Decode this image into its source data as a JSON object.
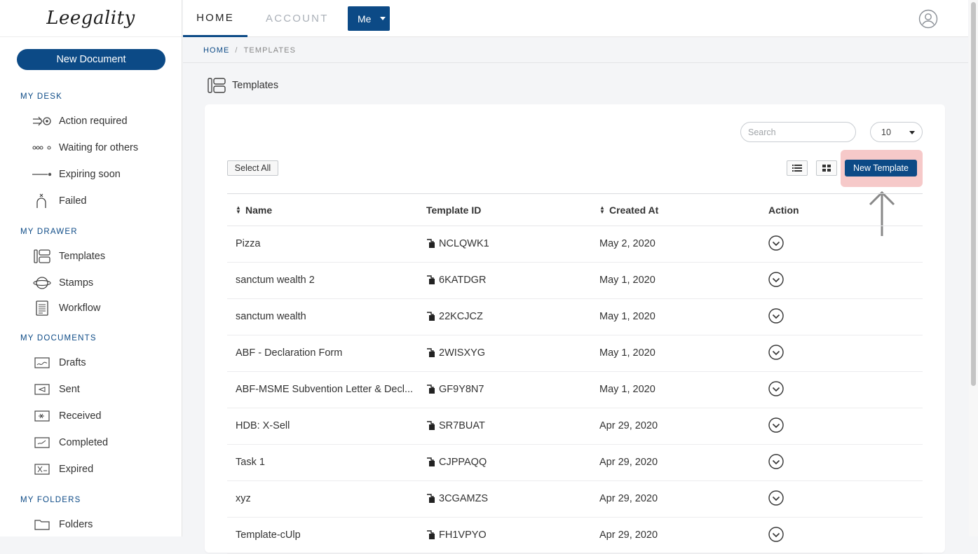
{
  "sidebar": {
    "logo": "Leegality",
    "new_document": "New Document",
    "sections": [
      {
        "title": "MY DESK",
        "items": [
          {
            "label": "Action required",
            "icon": "arrow-target-icon"
          },
          {
            "label": "Waiting for others",
            "icon": "dots-icon"
          },
          {
            "label": "Expiring soon",
            "icon": "fuse-icon"
          },
          {
            "label": "Failed",
            "icon": "broken-icon"
          }
        ]
      },
      {
        "title": "MY DRAWER",
        "items": [
          {
            "label": "Templates",
            "icon": "templates-icon"
          },
          {
            "label": "Stamps",
            "icon": "stamp-icon"
          },
          {
            "label": "Workflow",
            "icon": "workflow-icon"
          }
        ]
      },
      {
        "title": "MY DOCUMENTS",
        "items": [
          {
            "label": "Drafts",
            "icon": "drafts-icon"
          },
          {
            "label": "Sent",
            "icon": "sent-icon"
          },
          {
            "label": "Received",
            "icon": "received-icon"
          },
          {
            "label": "Completed",
            "icon": "completed-icon"
          },
          {
            "label": "Expired",
            "icon": "expired-icon"
          }
        ]
      },
      {
        "title": "MY FOLDERS",
        "items": [
          {
            "label": "Folders",
            "icon": "folder-icon"
          }
        ]
      }
    ]
  },
  "header": {
    "tabs": {
      "home": "HOME",
      "account": "ACCOUNT"
    },
    "me_label": "Me"
  },
  "breadcrumb": {
    "home": "HOME",
    "separator": "/",
    "current": "TEMPLATES"
  },
  "page": {
    "title": "Templates"
  },
  "toolbar": {
    "search_placeholder": "Search",
    "per_page": "10",
    "select_all": "Select All",
    "new_template": "New Template"
  },
  "table": {
    "headers": {
      "name": "Name",
      "id": "Template ID",
      "created": "Created At",
      "action": "Action"
    },
    "rows": [
      {
        "name": "Pizza",
        "id": "NCLQWK1",
        "created": "May 2, 2020"
      },
      {
        "name": "sanctum wealth 2",
        "id": "6KATDGR",
        "created": "May 1, 2020"
      },
      {
        "name": "sanctum wealth",
        "id": "22KCJCZ",
        "created": "May 1, 2020"
      },
      {
        "name": "ABF - Declaration Form",
        "id": "2WISXYG",
        "created": "May 1, 2020"
      },
      {
        "name": "ABF-MSME Subvention Letter & Decl...",
        "id": "GF9Y8N7",
        "created": "May 1, 2020"
      },
      {
        "name": "HDB: X-Sell",
        "id": "SR7BUAT",
        "created": "Apr 29, 2020"
      },
      {
        "name": "Task 1",
        "id": "CJPPAQQ",
        "created": "Apr 29, 2020"
      },
      {
        "name": "xyz",
        "id": "3CGAMZS",
        "created": "Apr 29, 2020"
      },
      {
        "name": "Template-cUlp",
        "id": "FH1VPYO",
        "created": "Apr 29, 2020"
      }
    ]
  },
  "colors": {
    "brand": "#0c4a86",
    "highlight": "#f6c9c9"
  }
}
